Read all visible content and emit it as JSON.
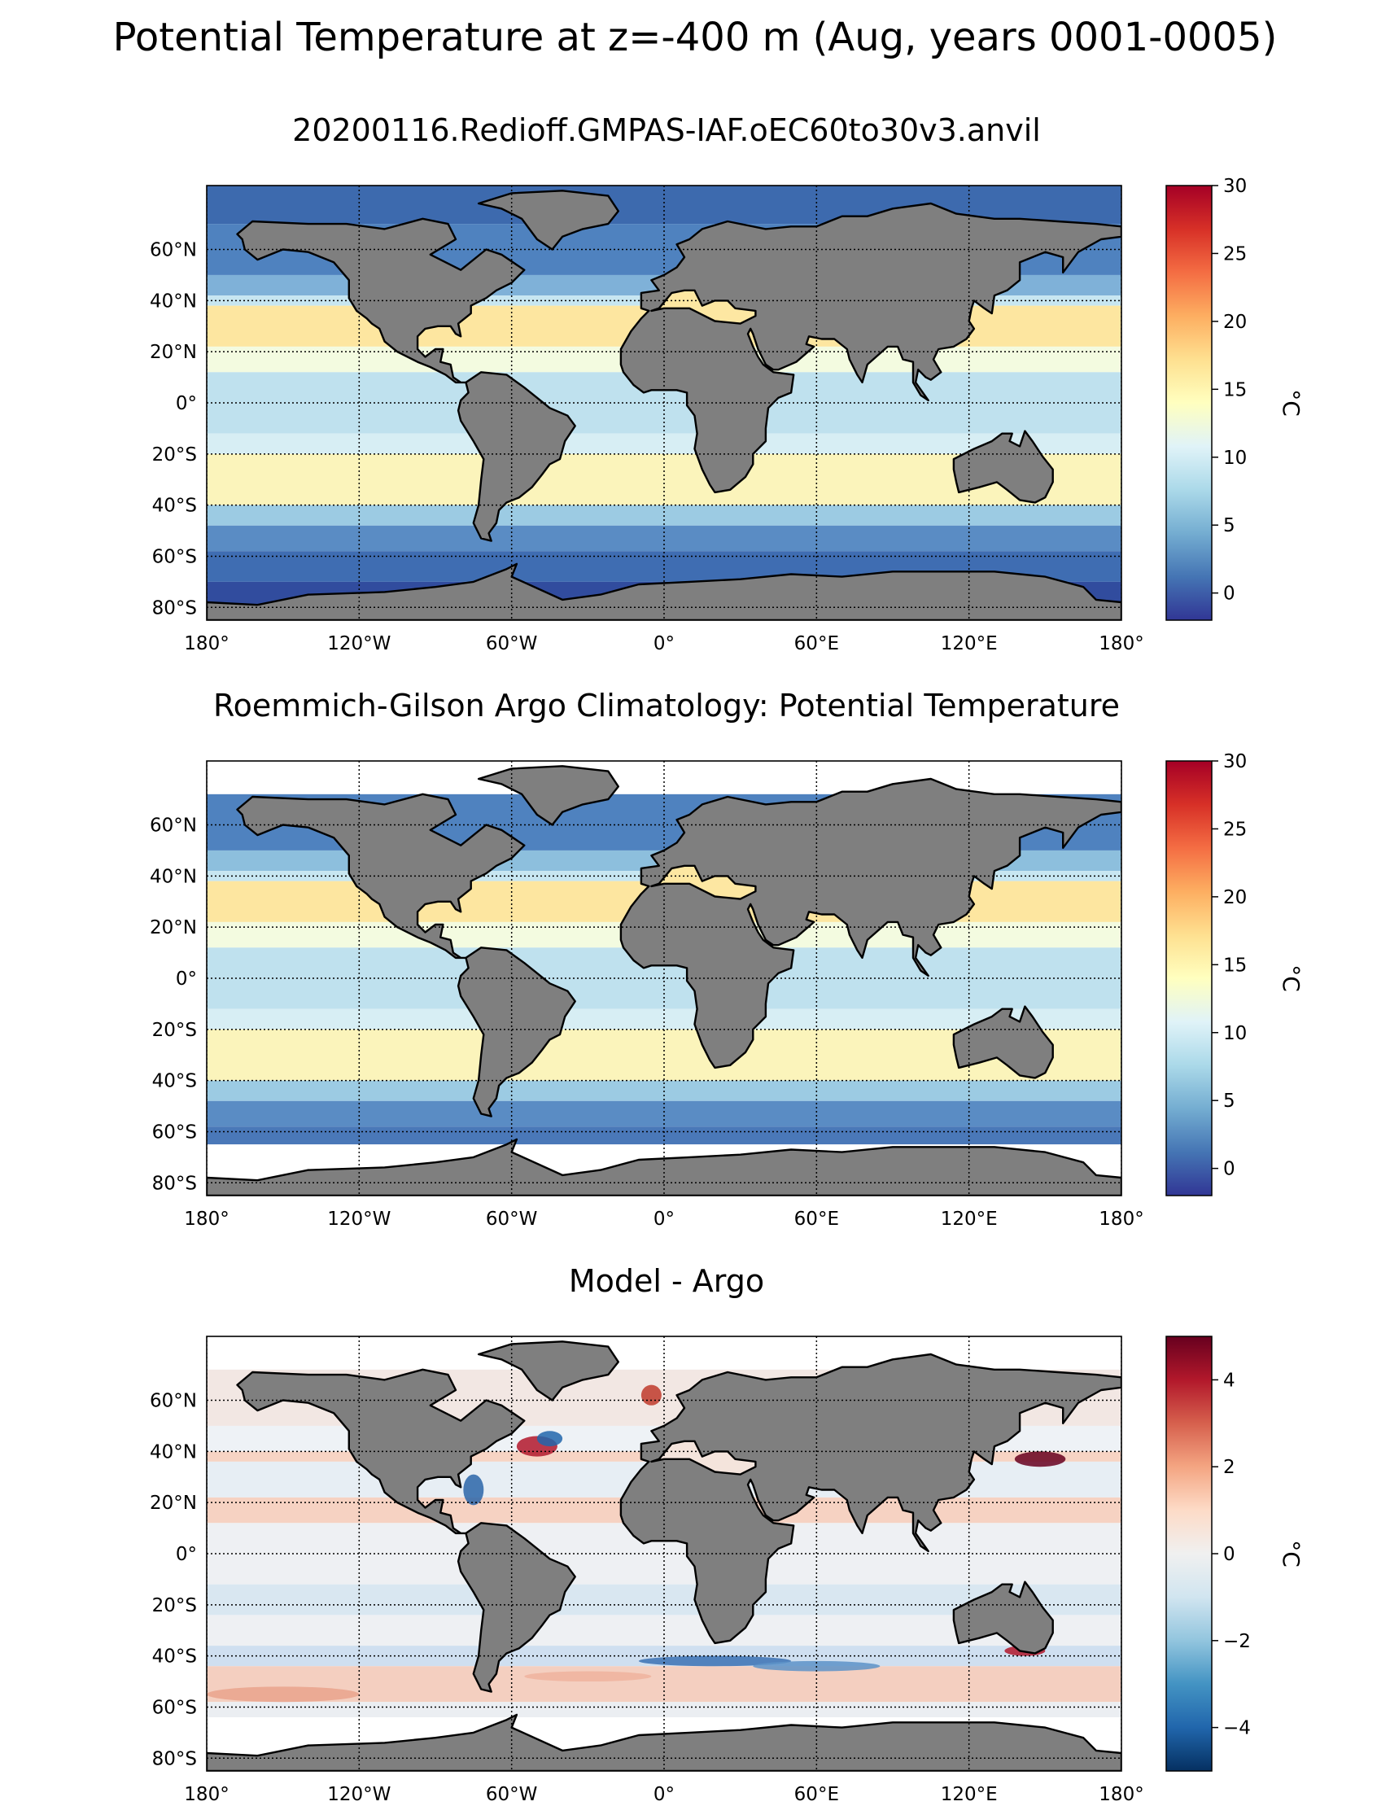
{
  "figure": {
    "suptitle": "Potential Temperature at z=-400 m (Aug, years 0001-0005)"
  },
  "axes": {
    "lon_ticks": [
      "180°",
      "120°W",
      "60°W",
      "0°",
      "60°E",
      "120°E",
      "180°"
    ],
    "lon_values": [
      -180,
      -120,
      -60,
      0,
      60,
      120,
      180
    ],
    "lat_ticks": [
      "60°N",
      "40°N",
      "20°N",
      "0°",
      "20°S",
      "40°S",
      "60°S",
      "80°S"
    ],
    "lat_values": [
      60,
      40,
      20,
      0,
      -20,
      -40,
      -60,
      -80
    ],
    "lat_range": [
      -85,
      85
    ],
    "lon_range": [
      -180,
      180
    ]
  },
  "colors": {
    "land": "#7f7f7f",
    "coast": "#000000",
    "nodata": "#ffffff"
  },
  "panels": [
    {
      "title": "20200116.Redioff.GMPAS-IAF.oEC60to30v3.anvil",
      "colorbar": {
        "label": "°C",
        "ticks": [
          "0",
          "5",
          "10",
          "15",
          "20",
          "25",
          "30"
        ],
        "tick_values": [
          0,
          5,
          10,
          15,
          20,
          25,
          30
        ],
        "range": [
          -2,
          30
        ],
        "colormap": "RdYlBu_r"
      }
    },
    {
      "title": "Roemmich-Gilson Argo Climatology: Potential Temperature",
      "colorbar": {
        "label": "°C",
        "ticks": [
          "0",
          "5",
          "10",
          "15",
          "20",
          "25",
          "30"
        ],
        "tick_values": [
          0,
          5,
          10,
          15,
          20,
          25,
          30
        ],
        "range": [
          -2,
          30
        ],
        "colormap": "RdYlBu_r"
      }
    },
    {
      "title": "Model - Argo",
      "colorbar": {
        "label": "°C",
        "ticks": [
          "4",
          "2",
          "0",
          "−2",
          "−4"
        ],
        "tick_values": [
          4,
          2,
          0,
          -2,
          -4
        ],
        "range": [
          -5,
          5
        ],
        "colormap": "RdBu_r"
      }
    }
  ]
}
